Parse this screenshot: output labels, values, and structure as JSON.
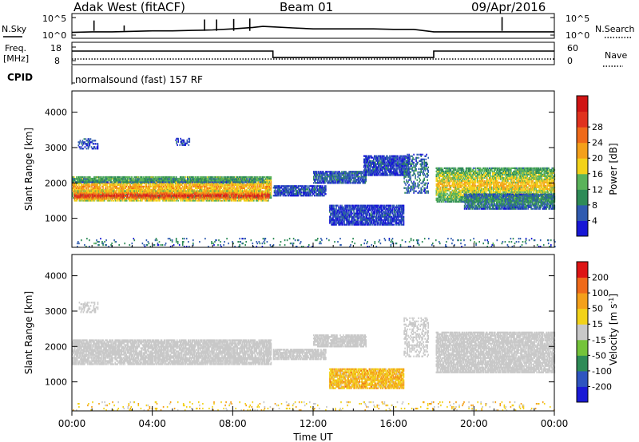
{
  "header": {
    "station": "Adak West (fitACF)",
    "beam": "Beam 01",
    "date": "09/Apr/2016"
  },
  "chart_data": [
    {
      "type": "line",
      "panel": "noise",
      "left_label": "N.Sky",
      "right_label": "N.Search",
      "left_ticks": [
        "10^5",
        "10^0"
      ],
      "right_ticks": [
        "10^5",
        "10^0"
      ],
      "x": [
        0,
        1,
        2,
        3,
        4,
        5,
        6,
        7,
        8,
        9,
        9.5,
        10,
        11,
        12,
        13,
        14,
        15,
        16,
        17,
        18,
        19,
        20,
        21,
        22,
        23,
        24
      ],
      "series": [
        {
          "values": [
            1.2,
            1.3,
            1.3,
            1.4,
            1.5,
            1.5,
            1.6,
            1.7,
            1.9,
            2.2,
            2.4,
            2.3,
            2.1,
            1.9,
            1.9,
            1.9,
            1.9,
            1.8,
            1.8,
            1.3,
            1.3,
            1.3,
            1.3,
            1.3,
            1.3,
            1.3
          ]
        }
      ],
      "spikes_x": [
        1.1,
        2.6,
        6.6,
        7.2,
        8.05,
        8.85,
        21.4
      ],
      "spikes_y": [
        3.6,
        2.6,
        3.8,
        3.8,
        3.9,
        4.0,
        4.3
      ],
      "ylim": [
        0,
        5
      ]
    },
    {
      "type": "line",
      "panel": "frequency",
      "left_label": "Freq. [MHz]",
      "right_label": "Nave",
      "left_ticks": [
        "18",
        "8"
      ],
      "right_ticks": [
        "60",
        "0"
      ],
      "x": [
        0,
        10,
        10,
        18,
        18,
        24
      ],
      "series": [
        {
          "values": [
            14.3,
            14.3,
            10.8,
            10.8,
            14.3,
            14.3
          ]
        },
        {
          "values": [
            10,
            10,
            10,
            10,
            10,
            10
          ]
        }
      ],
      "ylim": [
        7,
        19
      ]
    },
    {
      "type": "text",
      "panel": "cpid",
      "left_label": "CPID",
      "program": "normalsound (fast) 157 RF"
    },
    {
      "type": "heatmap",
      "panel": "power",
      "ylabel": "Slant Range [km]",
      "yticks": [
        "1000",
        "2000",
        "3000",
        "4000"
      ],
      "ylim": [
        180,
        4600
      ],
      "xlim": [
        0,
        24
      ],
      "colorbar_label": "Power [dB]",
      "colorbar_ticks": [
        "4",
        "8",
        "12",
        "16",
        "20",
        "24",
        "28"
      ],
      "colors": [
        "#1717d6",
        "#2f5bb0",
        "#2e8b57",
        "#5ab35a",
        "#f2d21a",
        "#f4a01a",
        "#ef6a1a",
        "#e0321e",
        "#d01414"
      ],
      "regions": [
        {
          "x0": 0.0,
          "x1": 9.9,
          "y0": 1560,
          "y1": 2160,
          "level": 0.55
        },
        {
          "x0": 0.1,
          "x1": 9.8,
          "y0": 1480,
          "y1": 1760,
          "level": 0.82
        },
        {
          "x0": 0.0,
          "x1": 9.6,
          "y0": 2000,
          "y1": 2120,
          "level": 0.3
        },
        {
          "x0": 0.3,
          "x1": 1.3,
          "y0": 2950,
          "y1": 3250,
          "level": 0.1
        },
        {
          "x0": 5.1,
          "x1": 5.9,
          "y0": 3050,
          "y1": 3250,
          "level": 0.1
        },
        {
          "x0": 10.0,
          "x1": 12.6,
          "y0": 1620,
          "y1": 1930,
          "level": 0.12
        },
        {
          "x0": 12.0,
          "x1": 14.6,
          "y0": 1980,
          "y1": 2330,
          "level": 0.15
        },
        {
          "x0": 14.5,
          "x1": 16.8,
          "y0": 2200,
          "y1": 2750,
          "level": 0.1
        },
        {
          "x0": 12.8,
          "x1": 16.5,
          "y0": 800,
          "y1": 1350,
          "level": 0.08
        },
        {
          "x0": 16.5,
          "x1": 17.7,
          "y0": 1700,
          "y1": 2800,
          "level": 0.18
        },
        {
          "x0": 18.1,
          "x1": 24.0,
          "y0": 1450,
          "y1": 2400,
          "level": 0.5
        },
        {
          "x0": 19.5,
          "x1": 24.0,
          "y0": 1250,
          "y1": 1700,
          "level": 0.22
        },
        {
          "x0": 0.0,
          "x1": 24.0,
          "y0": 180,
          "y1": 420,
          "level": 0.2
        }
      ]
    },
    {
      "type": "heatmap",
      "panel": "velocity",
      "xlabel": "Time UT",
      "ylabel": "Slant Range [km]",
      "xticks": [
        "00:00",
        "04:00",
        "08:00",
        "12:00",
        "16:00",
        "20:00",
        "00:00"
      ],
      "yticks": [
        "1000",
        "2000",
        "3000",
        "4000"
      ],
      "ylim": [
        180,
        4600
      ],
      "xlim": [
        0,
        24
      ],
      "colorbar_label": "Velocity [m s^-1]",
      "colorbar_ticks": [
        "200",
        "100",
        "50",
        "15",
        "-15",
        "-50",
        "-100",
        "-200"
      ],
      "colors": [
        "#1a1ad6",
        "#2e55c0",
        "#2e8b57",
        "#74c33a",
        "#c8c8c8",
        "#f2d21a",
        "#f4a01a",
        "#ef6a1a",
        "#dd1414"
      ],
      "regions": [
        {
          "x0": 0.0,
          "x1": 9.9,
          "y0": 1480,
          "y1": 2160,
          "level": 4
        },
        {
          "x0": 10.0,
          "x1": 12.6,
          "y0": 1620,
          "y1": 1930,
          "level": 4
        },
        {
          "x0": 12.0,
          "x1": 14.6,
          "y0": 1980,
          "y1": 2330,
          "level": 4
        },
        {
          "x0": 12.8,
          "x1": 16.5,
          "y0": 800,
          "y1": 1350,
          "level": 5.5
        },
        {
          "x0": 16.5,
          "x1": 17.7,
          "y0": 1700,
          "y1": 2800,
          "level": 4
        },
        {
          "x0": 18.1,
          "x1": 24.0,
          "y0": 1250,
          "y1": 2400,
          "level": 4
        },
        {
          "x0": 0.3,
          "x1": 1.3,
          "y0": 2950,
          "y1": 3250,
          "level": 4
        },
        {
          "x0": 0.0,
          "x1": 24.0,
          "y0": 180,
          "y1": 420,
          "level": 5
        }
      ]
    }
  ]
}
